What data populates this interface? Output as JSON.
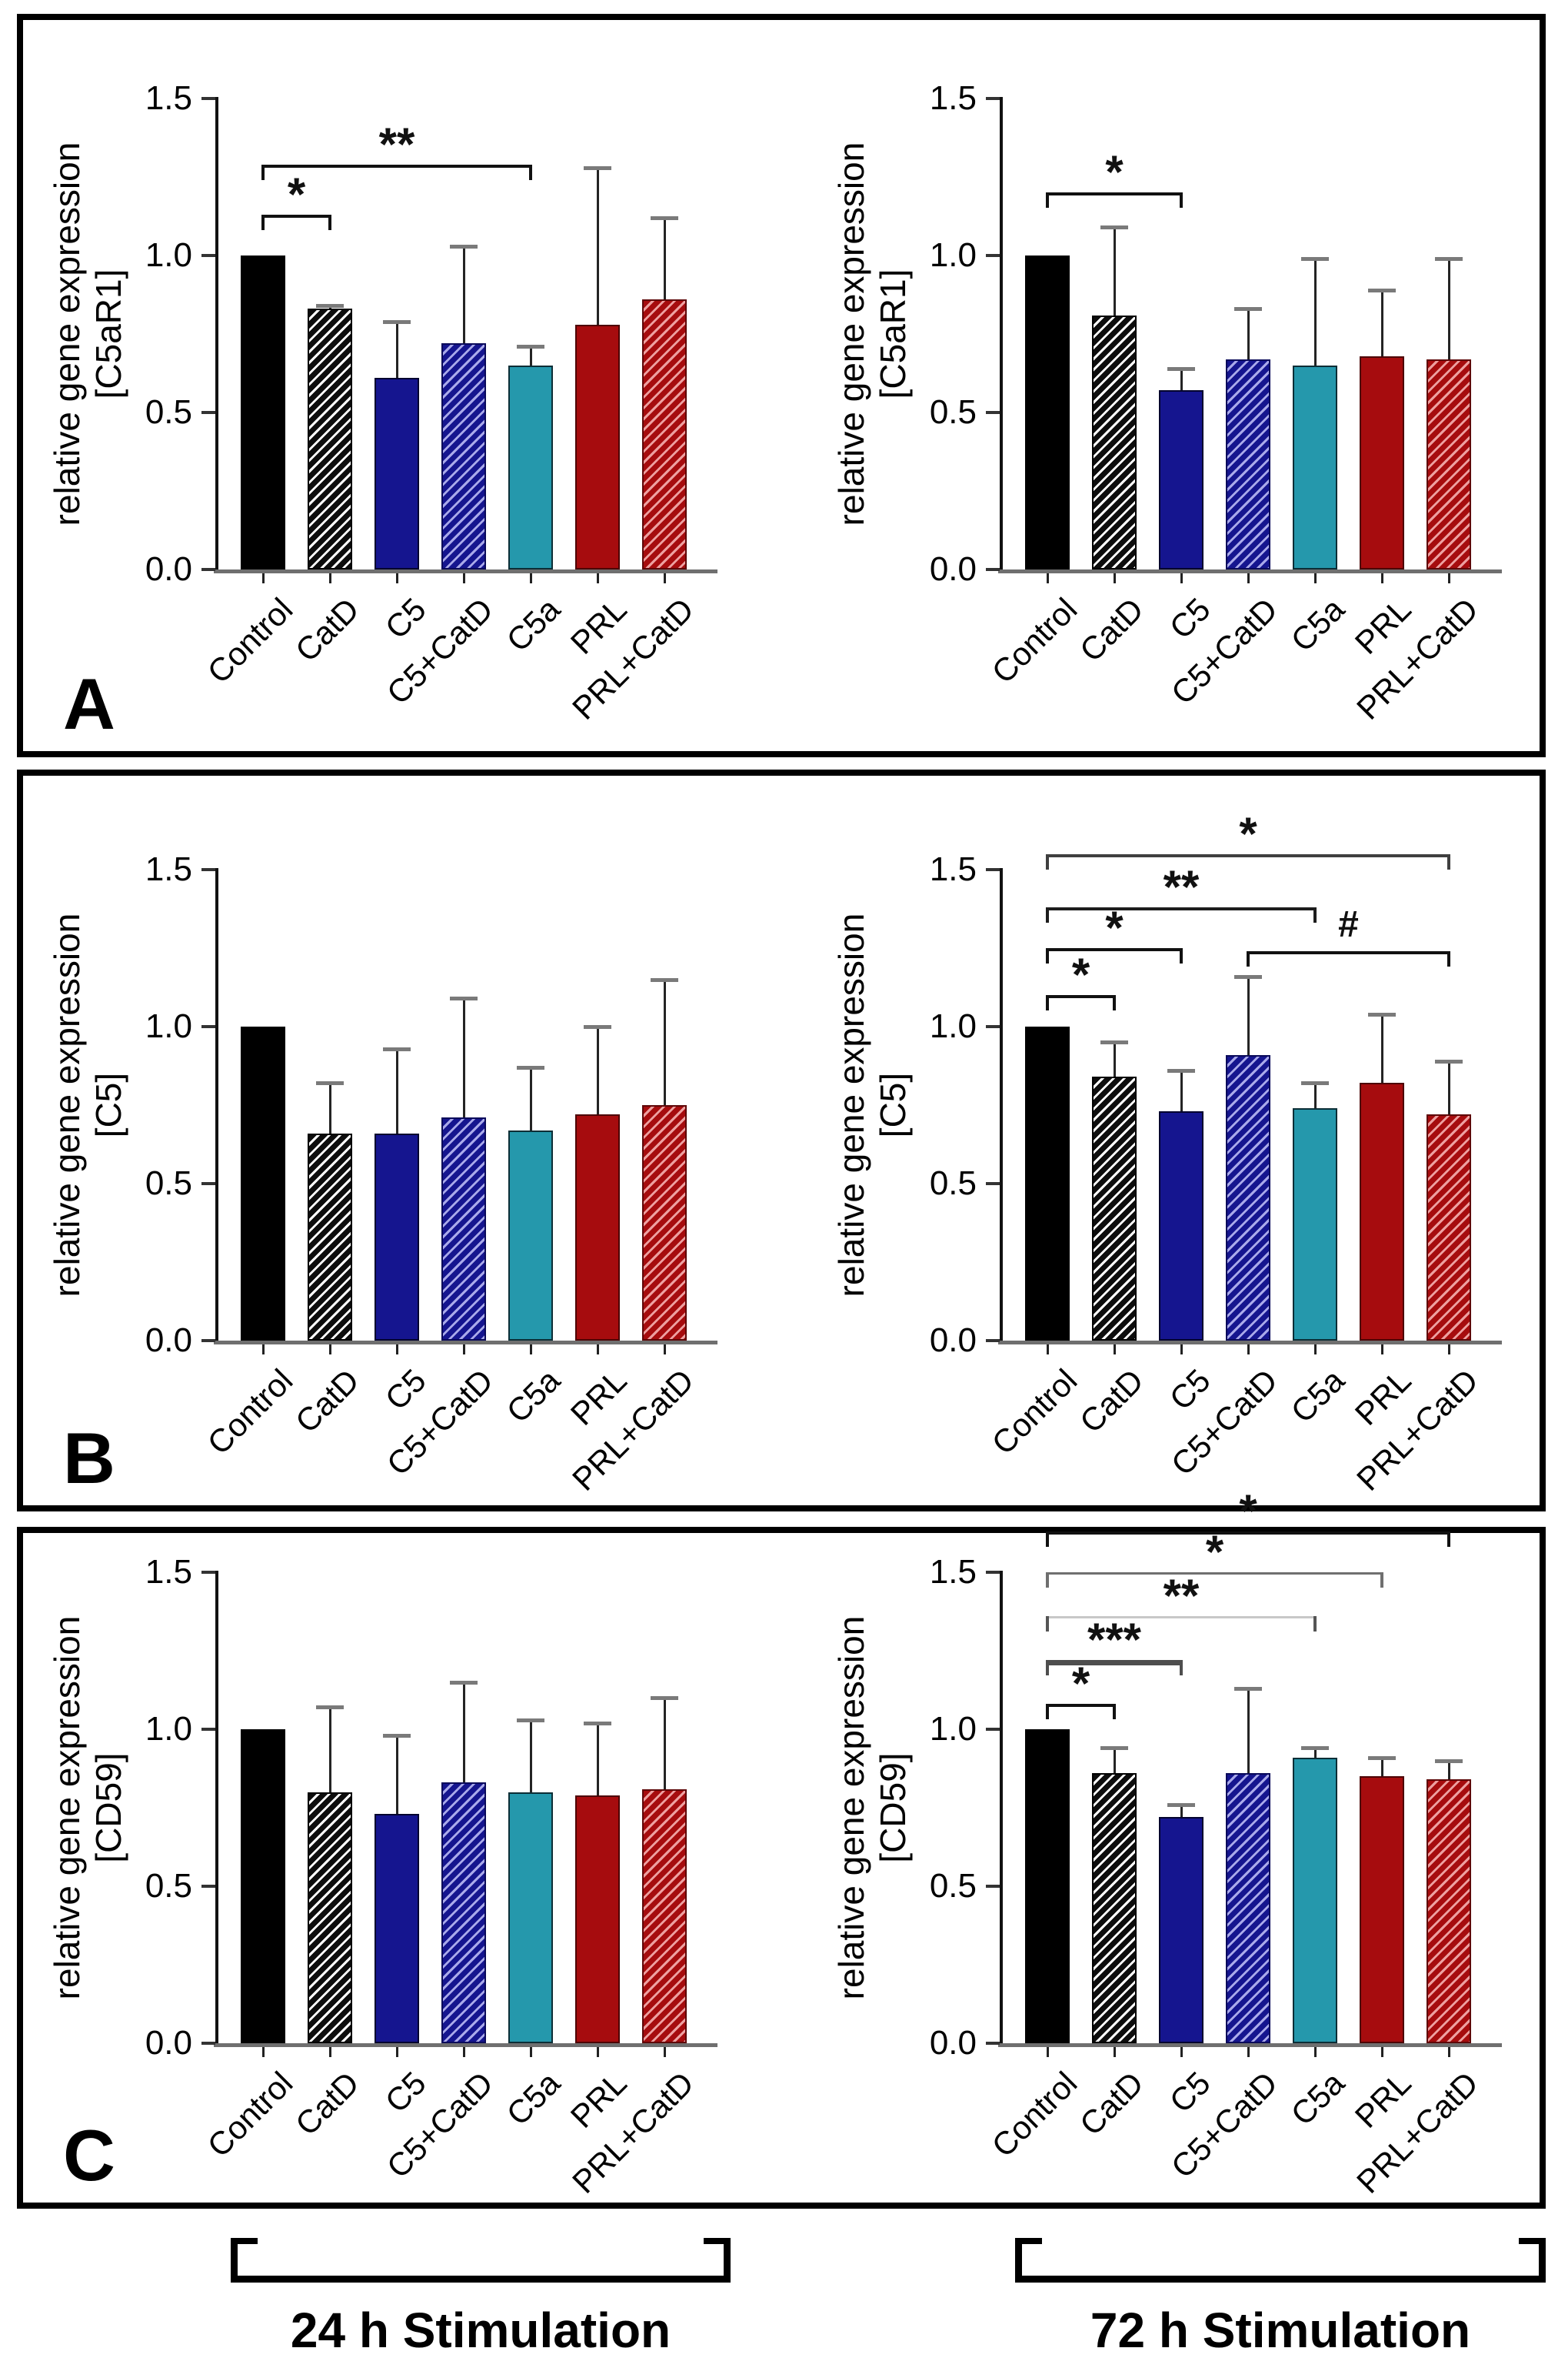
{
  "figure": {
    "description": "Three-panel bar chart figure of relative gene expression after 24 h and 72 h stimulation",
    "panels": [
      {
        "letter": "A",
        "gene": "[C5aR1]"
      },
      {
        "letter": "B",
        "gene": "[C5]"
      },
      {
        "letter": "C",
        "gene": "[CD59]"
      }
    ],
    "ylabel_line1": "relative gene expression",
    "categories": [
      "Control",
      "CatD",
      "C5",
      "C5+CatD",
      "C5a",
      "PRL",
      "PRL+CatD"
    ],
    "yticks": [
      "0.0",
      "0.5",
      "1.0",
      "1.5"
    ],
    "bottom_groups": [
      {
        "label": "24 h Stimulation"
      },
      {
        "label": "72 h Stimulation"
      }
    ],
    "colors": {
      "black": "#000000",
      "navy": "#15158F",
      "teal": "#2598AC",
      "dark_red": "#A60C0E",
      "hatch_white": "#ffffff",
      "hatch_lavender": "#a9a9ea",
      "hatch_pink": "#eda0a0",
      "axis_gray": "#6f6f6f",
      "error_cap_gray": "#7a7a7a"
    },
    "bar_styles": [
      {
        "category": "Control",
        "fill": "#000000",
        "hatch": null,
        "border": "#000000"
      },
      {
        "category": "CatD",
        "fill": "#0d0d0d",
        "hatch": "#ffffff",
        "border": "#000000"
      },
      {
        "category": "C5",
        "fill": "#15158F",
        "hatch": null,
        "border": "#04042e"
      },
      {
        "category": "C5+CatD",
        "fill": "#15158F",
        "hatch": "#a9a9ea",
        "border": "#0a0a5a"
      },
      {
        "category": "C5a",
        "fill": "#2598AC",
        "hatch": null,
        "border": "#0c2e36"
      },
      {
        "category": "PRL",
        "fill": "#A60C0E",
        "hatch": null,
        "border": "#4d0405"
      },
      {
        "category": "PRL+CatD",
        "fill": "#A60C0E",
        "hatch": "#eda0a0",
        "border": "#5e0708"
      }
    ]
  },
  "chart_data": [
    {
      "type": "bar",
      "panel": "A",
      "timepoint": "24 h Stimulation",
      "ylabel": "relative gene expression",
      "gene": "[C5aR1]",
      "ylim": [
        0,
        1.5
      ],
      "yticks": [
        0.0,
        0.5,
        1.0,
        1.5
      ],
      "categories": [
        "Control",
        "CatD",
        "C5",
        "C5+CatD",
        "C5a",
        "PRL",
        "PRL+CatD"
      ],
      "values": [
        1.0,
        0.83,
        0.61,
        0.72,
        0.65,
        0.78,
        0.86
      ],
      "error_top": [
        null,
        0.84,
        0.79,
        1.03,
        0.71,
        1.28,
        1.12
      ],
      "significance": [
        {
          "from": 0,
          "to": 1,
          "label": "*",
          "y": 1.13,
          "color": "#111111",
          "lw": 4
        },
        {
          "from": 0,
          "to": 4,
          "label": "**",
          "y": 1.29,
          "color": "#111111",
          "lw": 4
        }
      ]
    },
    {
      "type": "bar",
      "panel": "A",
      "timepoint": "72 h Stimulation",
      "ylabel": "relative gene expression",
      "gene": "[C5aR1]",
      "ylim": [
        0,
        1.5
      ],
      "yticks": [
        0.0,
        0.5,
        1.0,
        1.5
      ],
      "categories": [
        "Control",
        "CatD",
        "C5",
        "C5+CatD",
        "C5a",
        "PRL",
        "PRL+CatD"
      ],
      "values": [
        1.0,
        0.81,
        0.57,
        0.67,
        0.65,
        0.68,
        0.67
      ],
      "error_top": [
        null,
        1.09,
        0.64,
        0.83,
        0.99,
        0.89,
        0.99
      ],
      "significance": [
        {
          "from": 0,
          "to": 2,
          "label": "*",
          "y": 1.2,
          "color": "#111111",
          "lw": 4
        }
      ]
    },
    {
      "type": "bar",
      "panel": "B",
      "timepoint": "24 h Stimulation",
      "ylabel": "relative gene expression",
      "gene": "[C5]",
      "ylim": [
        0,
        1.5
      ],
      "yticks": [
        0.0,
        0.5,
        1.0,
        1.5
      ],
      "categories": [
        "Control",
        "CatD",
        "C5",
        "C5+CatD",
        "C5a",
        "PRL",
        "PRL+CatD"
      ],
      "values": [
        1.0,
        0.66,
        0.66,
        0.71,
        0.67,
        0.72,
        0.75
      ],
      "error_top": [
        null,
        0.82,
        0.93,
        1.09,
        0.87,
        1.0,
        1.15
      ],
      "significance": []
    },
    {
      "type": "bar",
      "panel": "B",
      "timepoint": "72 h Stimulation",
      "ylabel": "relative gene expression",
      "gene": "[C5]",
      "ylim": [
        0,
        1.5
      ],
      "yticks": [
        0.0,
        0.5,
        1.0,
        1.5
      ],
      "categories": [
        "Control",
        "CatD",
        "C5",
        "C5+CatD",
        "C5a",
        "PRL",
        "PRL+CatD"
      ],
      "values": [
        1.0,
        0.84,
        0.73,
        0.91,
        0.74,
        0.82,
        0.72
      ],
      "error_top": [
        null,
        0.95,
        0.86,
        1.16,
        0.82,
        1.04,
        0.89
      ],
      "significance": [
        {
          "from": 0,
          "to": 1,
          "label": "*",
          "y": 1.1,
          "color": "#111111",
          "lw": 4
        },
        {
          "from": 0,
          "to": 2,
          "label": "*",
          "y": 1.25,
          "color": "#111111",
          "lw": 4
        },
        {
          "from": 3,
          "to": 6,
          "label": "#",
          "y": 1.24,
          "color": "#111111",
          "lw": 4
        },
        {
          "from": 0,
          "to": 4,
          "label": "**",
          "y": 1.38,
          "color": "#1d1d1d",
          "lw": 4
        },
        {
          "from": 0,
          "to": 6,
          "label": "*",
          "y": 1.55,
          "color": "#3f3f3f",
          "lw": 4
        }
      ]
    },
    {
      "type": "bar",
      "panel": "C",
      "timepoint": "24 h Stimulation",
      "ylabel": "relative gene expression",
      "gene": "[CD59]",
      "ylim": [
        0,
        1.5
      ],
      "yticks": [
        0.0,
        0.5,
        1.0,
        1.5
      ],
      "categories": [
        "Control",
        "CatD",
        "C5",
        "C5+CatD",
        "C5a",
        "PRL",
        "PRL+CatD"
      ],
      "values": [
        1.0,
        0.8,
        0.73,
        0.83,
        0.8,
        0.79,
        0.81
      ],
      "error_top": [
        null,
        1.07,
        0.98,
        1.15,
        1.03,
        1.02,
        1.1
      ],
      "significance": []
    },
    {
      "type": "bar",
      "panel": "C",
      "timepoint": "72 h Stimulation",
      "ylabel": "relative gene expression",
      "gene": "[CD59]",
      "ylim": [
        0,
        1.5
      ],
      "yticks": [
        0.0,
        0.5,
        1.0,
        1.5
      ],
      "categories": [
        "Control",
        "CatD",
        "C5",
        "C5+CatD",
        "C5a",
        "PRL",
        "PRL+CatD"
      ],
      "values": [
        1.0,
        0.86,
        0.72,
        0.86,
        0.91,
        0.85,
        0.84
      ],
      "error_top": [
        null,
        0.94,
        0.76,
        1.13,
        0.94,
        0.91,
        0.9
      ],
      "significance": [
        {
          "from": 0,
          "to": 1,
          "label": "*",
          "y": 1.08,
          "color": "#111111",
          "lw": 4
        },
        {
          "from": 0,
          "to": 2,
          "label": "***",
          "y": 1.22,
          "color": "#4e4e4e",
          "lw": 7
        },
        {
          "from": 0,
          "to": 4,
          "label": "**",
          "y": 1.36,
          "color": "#c8c8c8",
          "lw": 3
        },
        {
          "from": 0,
          "to": 5,
          "label": "*",
          "y": 1.5,
          "color": "#6f6f6f",
          "lw": 3
        },
        {
          "from": 0,
          "to": 6,
          "label": "*",
          "y": 1.63,
          "color": "#111111",
          "lw": 4
        }
      ]
    }
  ]
}
